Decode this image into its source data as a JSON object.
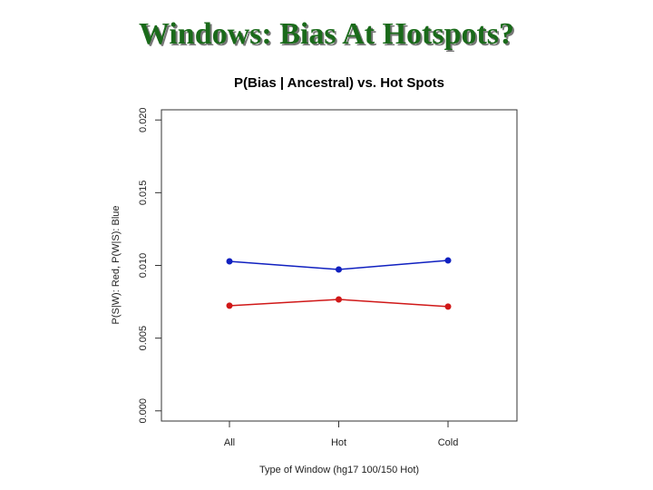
{
  "slide_title": "Windows: Bias At Hotspots?",
  "chart_data": {
    "type": "line",
    "title": "P(Bias | Ancestral) vs. Hot Spots",
    "x_label": "Type of Window (hg17 100/150 Hot)",
    "y_label": "P(S|W): Red, P(W|S): Blue",
    "categories": [
      "All",
      "Hot",
      "Cold"
    ],
    "series": [
      {
        "color": "#1020c0",
        "values": [
          0.01028,
          0.00972,
          0.01034
        ]
      },
      {
        "color": "#d01818",
        "values": [
          0.00723,
          0.00766,
          0.00717
        ]
      }
    ],
    "ylim": [
      -0.0007,
      0.0207
    ],
    "yticks": [
      {
        "value": 0.0,
        "label": "0.000"
      },
      {
        "value": 0.005,
        "label": "0.005"
      },
      {
        "value": 0.01,
        "label": "0.010"
      },
      {
        "value": 0.015,
        "label": "0.015"
      },
      {
        "value": 0.02,
        "label": "0.020"
      }
    ]
  }
}
